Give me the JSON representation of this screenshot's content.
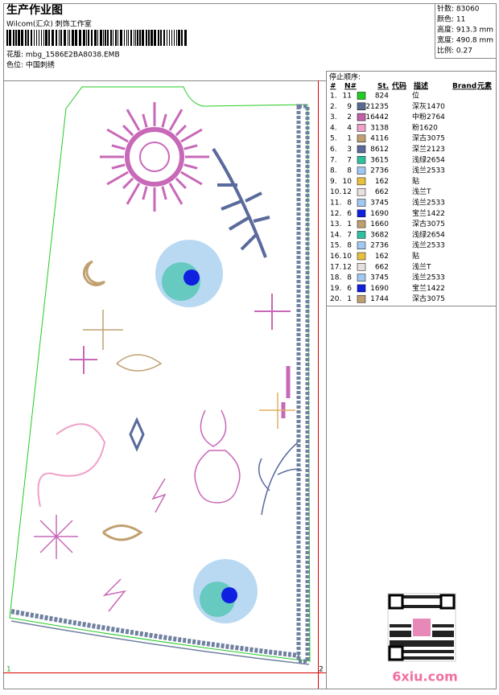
{
  "header": {
    "title": "生产作业图",
    "studio": "Wilcom(汇众) 刺饰工作室",
    "file": "花版: mbg_1586E2BA8038.EMB",
    "colorway": "色位: 中国刺绣"
  },
  "info": [
    "针数: 83060",
    "颜色: 11",
    "高度: 913.3 mm",
    "宽度: 490.8 mm",
    "比例: 0.27"
  ],
  "table": {
    "caption": "停止顺序:",
    "columns": [
      "#",
      "N#",
      "St.",
      "代码",
      "描述",
      "Brand",
      "元素"
    ],
    "rows": [
      [
        "1.",
        "11",
        "#22cc22",
        "824",
        "位"
      ],
      [
        "2.",
        "9",
        "#5a6a8c",
        "21235",
        "深灰1470"
      ],
      [
        "3.",
        "2",
        "#c060a8",
        "16442",
        "中粉2764"
      ],
      [
        "4.",
        "4",
        "#f0a0c8",
        "3138",
        "粉1620"
      ],
      [
        "5.",
        "1",
        "#c0a070",
        "4116",
        "深古3075"
      ],
      [
        "6.",
        "3",
        "#5a6a9c",
        "8612",
        "深兰2123"
      ],
      [
        "7.",
        "7",
        "#30c0a0",
        "3615",
        "浅绿2654"
      ],
      [
        "8.",
        "8",
        "#a0c8f0",
        "2736",
        "浅兰2533"
      ],
      [
        "9.",
        "10",
        "#e8c040",
        "162",
        "贴"
      ],
      [
        "10.",
        "12",
        "#e8e0e0",
        "662",
        "浅兰T"
      ],
      [
        "11.",
        "8",
        "#a0c8f0",
        "3745",
        "浅兰2533"
      ],
      [
        "12.",
        "6",
        "#1020e0",
        "1690",
        "宝兰1422"
      ],
      [
        "13.",
        "1",
        "#c0a070",
        "1660",
        "深古3075"
      ],
      [
        "14.",
        "7",
        "#30c0a0",
        "3682",
        "浅绿2654"
      ],
      [
        "15.",
        "8",
        "#a0c8f0",
        "2736",
        "浅兰2533"
      ],
      [
        "16.",
        "10",
        "#e8c040",
        "162",
        "贴"
      ],
      [
        "17.",
        "12",
        "#e8e0e0",
        "662",
        "浅兰T"
      ],
      [
        "18.",
        "8",
        "#a0c8f0",
        "3745",
        "浅兰2533"
      ],
      [
        "19.",
        "6",
        "#1020e0",
        "1690",
        "宝兰1422"
      ],
      [
        "20.",
        "1",
        "#c0a070",
        "1744",
        "深古3075"
      ]
    ]
  },
  "corners": [
    "1",
    "2"
  ],
  "watermark": "6xiu.com"
}
